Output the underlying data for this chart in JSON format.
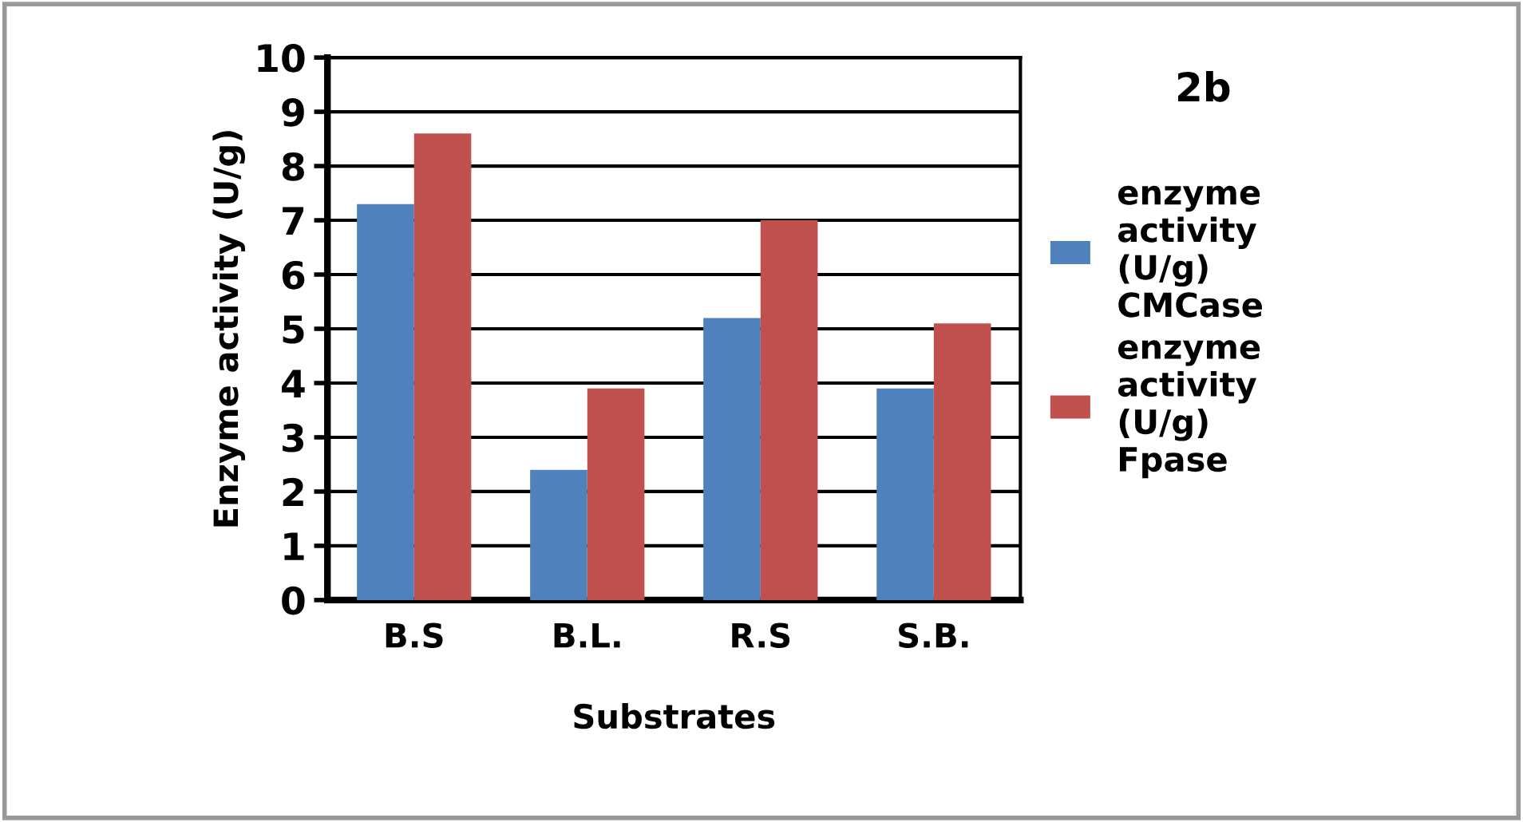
{
  "chart_data": {
    "type": "bar",
    "xlabel": "Substrates",
    "ylabel": "Enzyme activity (U/g)",
    "categories": [
      "B.S",
      "B.L.",
      "R.S",
      "S.B."
    ],
    "series": [
      {
        "name": "enzyme activity (U/g) CMCase",
        "color": "#4f81bd",
        "values": [
          7.3,
          2.4,
          5.2,
          3.9
        ]
      },
      {
        "name": "enzyme activity (U/g) Fpase",
        "color": "#c0504d",
        "values": [
          8.6,
          3.9,
          7.0,
          5.1
        ]
      }
    ],
    "ylim": [
      0,
      10
    ],
    "yticks": [
      0,
      1,
      2,
      3,
      4,
      5,
      6,
      7,
      8,
      9,
      10
    ],
    "grid": "y",
    "legend": "right",
    "annotations": [
      "2b"
    ]
  }
}
